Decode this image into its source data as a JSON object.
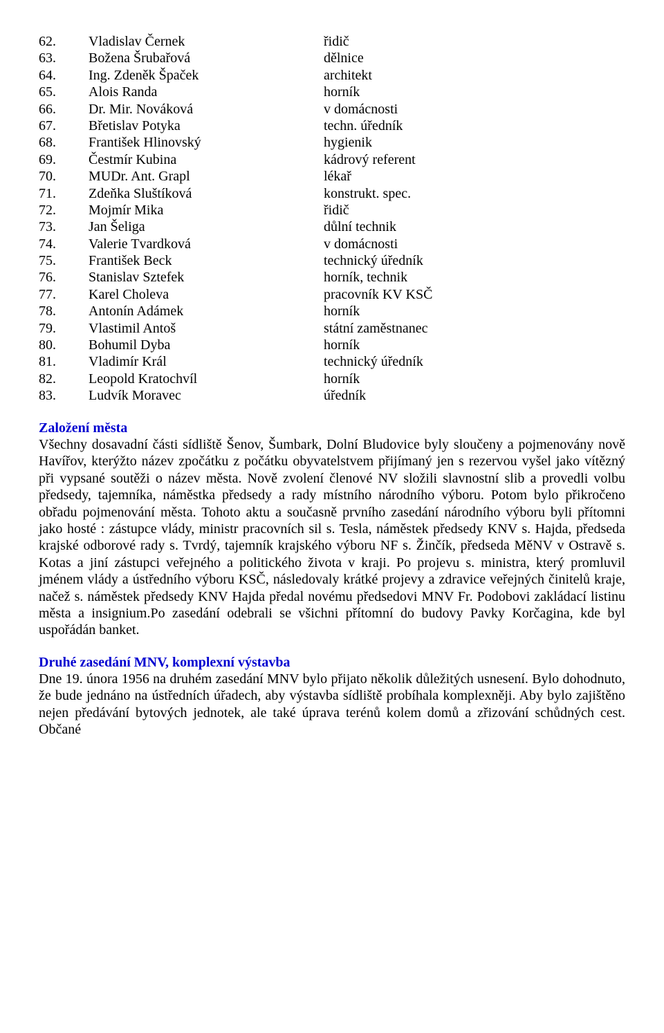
{
  "people": [
    {
      "num": "62.",
      "name": "Vladislav Černek",
      "role": "řidič"
    },
    {
      "num": "63.",
      "name": "Božena Šrubařová",
      "role": "dělnice"
    },
    {
      "num": "64.",
      "name": "Ing. Zdeněk Špaček",
      "role": "architekt"
    },
    {
      "num": "65.",
      "name": "Alois Randa",
      "role": "horník"
    },
    {
      "num": "66.",
      "name": "Dr. Mir. Nováková",
      "role": "v domácnosti"
    },
    {
      "num": "67.",
      "name": "Břetislav Potyka",
      "role": "techn. úředník"
    },
    {
      "num": "68.",
      "name": "František Hlinovský",
      "role": "hygienik"
    },
    {
      "num": "69.",
      "name": "Čestmír Kubina",
      "role": "kádrový referent"
    },
    {
      "num": "70.",
      "name": "MUDr. Ant. Grapl",
      "role": "lékař"
    },
    {
      "num": "71.",
      "name": "Zdeňka Sluštíková",
      "role": "konstrukt. spec."
    },
    {
      "num": "72.",
      "name": "Mojmír Mika",
      "role": "řidič"
    },
    {
      "num": "73.",
      "name": "Jan Šeliga",
      "role": "důlní technik"
    },
    {
      "num": "74.",
      "name": "Valerie Tvardková",
      "role": "v domácnosti"
    },
    {
      "num": "75.",
      "name": "František Beck",
      "role": "technický úředník"
    },
    {
      "num": "76.",
      "name": "Stanislav Sztefek",
      "role": "horník, technik"
    },
    {
      "num": "77.",
      "name": "Karel Choleva",
      "role": "pracovník KV KSČ"
    },
    {
      "num": "78.",
      "name": "Antonín Adámek",
      "role": "horník"
    },
    {
      "num": "79.",
      "name": "Vlastimil Antoš",
      "role": "státní zaměstnanec"
    },
    {
      "num": "80.",
      "name": "Bohumil Dyba",
      "role": "horník"
    },
    {
      "num": "81.",
      "name": "Vladimír Král",
      "role": "technický úředník"
    },
    {
      "num": "82.",
      "name": "Leopold Kratochvíl",
      "role": "horník"
    },
    {
      "num": "83.",
      "name": "Ludvík Moravec",
      "role": "úředník"
    }
  ],
  "section1": {
    "heading": "Založení města",
    "body": "Všechny dosavadní části sídliště Šenov, Šumbark, Dolní Bludovice byly sloučeny a pojmenovány nově Havířov, kterýžto název zpočátku z počátku obyvatelstvem přijímaný jen s rezervou vyšel jako vítězný při vypsané soutěži o název města. Nově zvolení členové NV složili slavnostní slib a provedli volbu předsedy, tajemníka, náměstka předsedy a rady místního národního výboru. Potom bylo přikročeno obřadu pojmenování města. Tohoto aktu a současně prvního zasedání národního výboru byli přítomni jako hosté : zástupce vlády, ministr pracovních sil s. Tesla, náměstek předsedy KNV s. Hajda, předseda krajské odborové rady s. Tvrdý, tajemník krajského výboru NF s. Žinčík, předseda MěNV v Ostravě s. Kotas a jiní zástupci veřejného a politického života v kraji. Po projevu s. ministra, který promluvil jménem vlády a ústředního výboru KSČ, následovaly krátké projevy a zdravice veřejných činitelů kraje, načež s. náměstek předsedy KNV Hajda předal novému předsedovi MNV Fr. Podobovi zakládací listinu města a insignium.Po zasedání odebrali se všichni přítomní do budovy Pavky Korčagina, kde byl uspořádán banket."
  },
  "section2": {
    "heading": "Druhé zasedání MNV, komplexní výstavba",
    "body": "Dne 19. února 1956 na druhém zasedání MNV bylo přijato několik důležitých usnesení. Bylo dohodnuto, že bude jednáno na ústředních úřadech, aby výstavba sídliště probíhala komplexněji. Aby bylo zajištěno nejen předávání bytových jednotek, ale také úprava terénů kolem domů a zřizování schůdných cest. Občané"
  },
  "colors": {
    "heading": "#0000d0",
    "text": "#000000",
    "background": "#ffffff"
  },
  "typography": {
    "font_family": "Times New Roman",
    "body_size_pt": 15,
    "heading_weight": "bold"
  }
}
